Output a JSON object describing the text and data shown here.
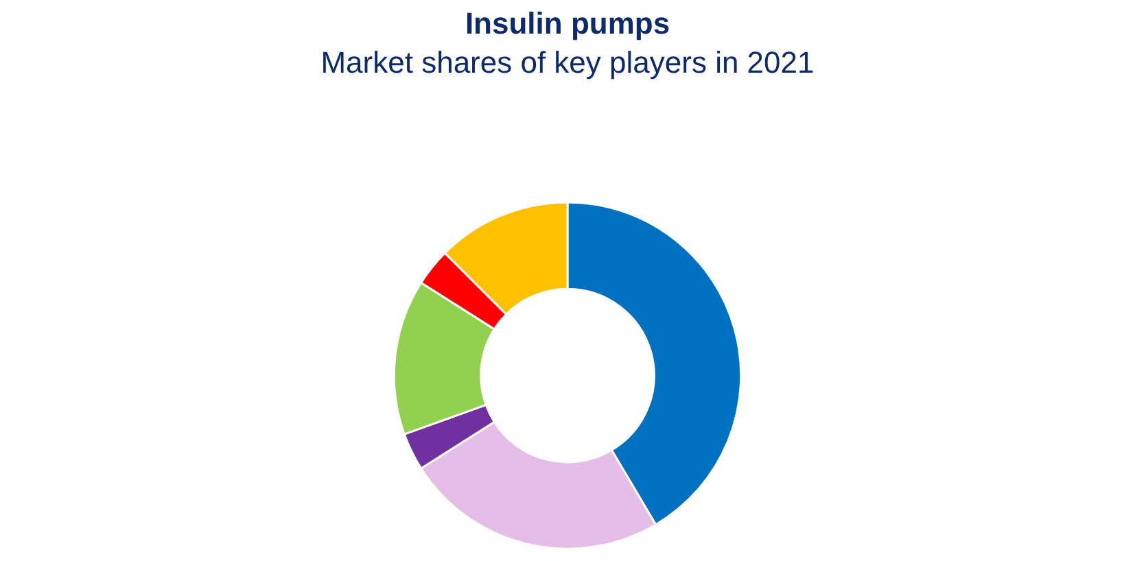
{
  "chart_data": {
    "type": "donut",
    "title": "Insulin pumps",
    "subtitle": "Market shares of key players in 2021",
    "categories": [
      null,
      null,
      null,
      null,
      null,
      null
    ],
    "values": [
      41.5,
      24.5,
      3.5,
      14.5,
      3.5,
      12.5
    ],
    "colors": [
      "#0070c0",
      "#e6bde6",
      "#7030a0",
      "#92d050",
      "#ff0000",
      "#ffc000"
    ],
    "legend": false
  }
}
